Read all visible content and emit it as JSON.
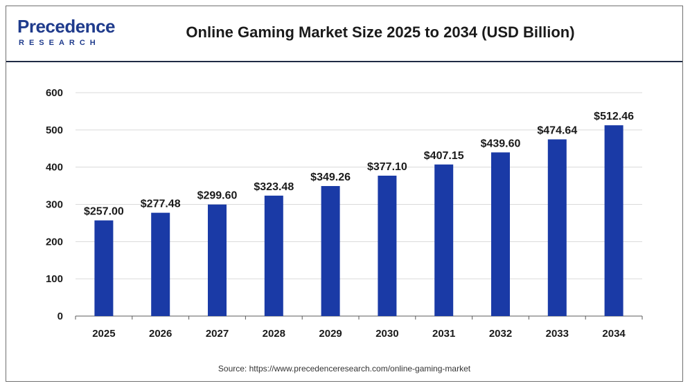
{
  "header": {
    "logo_word": "Precedence",
    "logo_sub": "RESEARCH",
    "title": "Online Gaming Market Size 2025 to 2034 (USD Billion)"
  },
  "footer": {
    "source": "Source: https://www.precedenceresearch.com/online-gaming-market"
  },
  "colors": {
    "bar": "#1a3aa6",
    "grid": "#d9d9d9",
    "axis": "#595959"
  },
  "chart_data": {
    "type": "bar",
    "title": "Online Gaming Market Size 2025 to 2034 (USD Billion)",
    "xlabel": "",
    "ylabel": "",
    "categories": [
      "2025",
      "2026",
      "2027",
      "2028",
      "2029",
      "2030",
      "2031",
      "2032",
      "2033",
      "2034"
    ],
    "values": [
      257.0,
      277.48,
      299.6,
      323.48,
      349.26,
      377.1,
      407.15,
      439.6,
      474.64,
      512.46
    ],
    "data_labels": [
      "$257.00",
      "$277.48",
      "$299.60",
      "$323.48",
      "$349.26",
      "$377.10",
      "$407.15",
      "$439.60",
      "$474.64",
      "$512.46"
    ],
    "ylim": [
      0,
      600
    ],
    "yticks": [
      0,
      100,
      200,
      300,
      400,
      500,
      600
    ],
    "grid": true,
    "legend": "none"
  }
}
